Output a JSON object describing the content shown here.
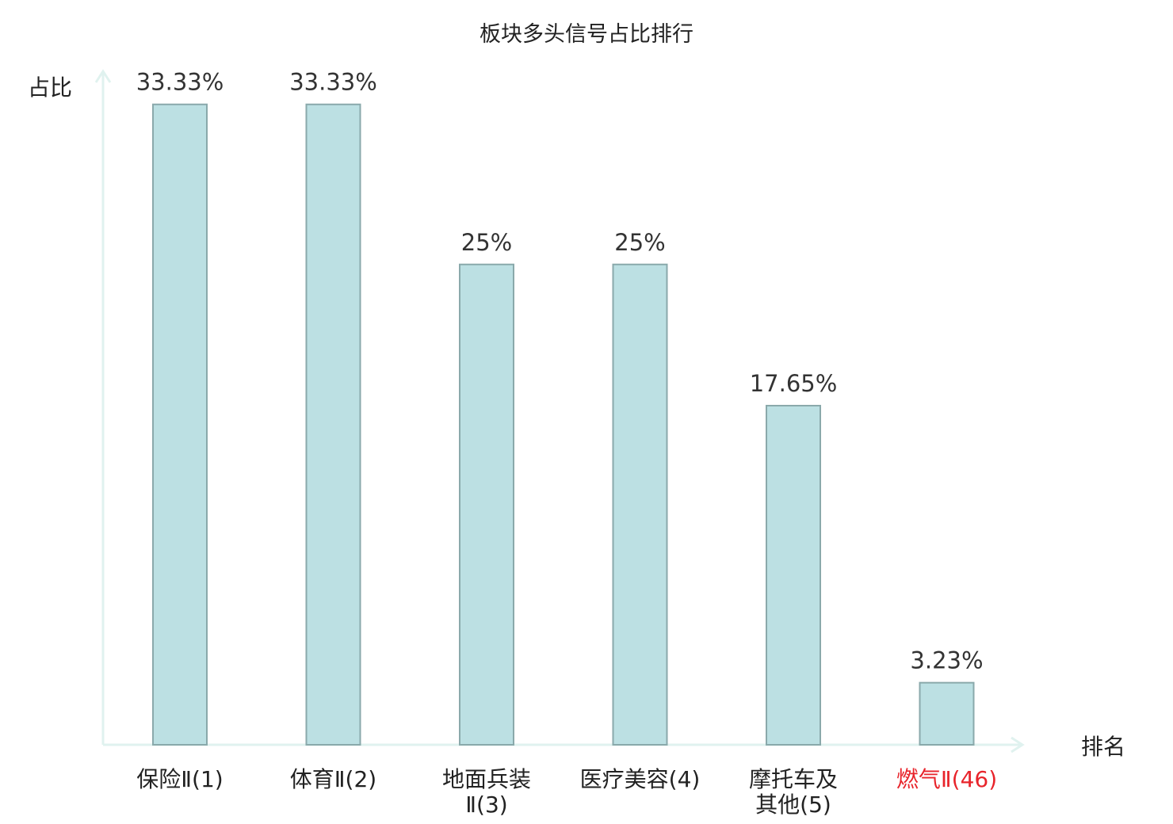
{
  "chart_data": {
    "type": "bar",
    "title": "板块多头信号占比排行",
    "ylabel": "占比",
    "xlabel": "排名",
    "ylim": [
      0,
      36
    ],
    "grid": false,
    "categories": [
      {
        "lines": [
          "保险Ⅱ(1)"
        ],
        "highlight": false
      },
      {
        "lines": [
          "体育Ⅱ(2)"
        ],
        "highlight": false
      },
      {
        "lines": [
          "地面兵装",
          "Ⅱ(3)"
        ],
        "highlight": false
      },
      {
        "lines": [
          "医疗美容(4)"
        ],
        "highlight": false
      },
      {
        "lines": [
          "摩托车及",
          "其他(5)"
        ],
        "highlight": false
      },
      {
        "lines": [
          "燃气Ⅱ(46)"
        ],
        "highlight": true
      }
    ],
    "values": [
      33.33,
      33.33,
      25,
      25,
      17.65,
      3.23
    ],
    "value_labels": [
      "33.33%",
      "33.33%",
      "25%",
      "25%",
      "17.65%",
      "3.23%"
    ],
    "colors": {
      "bar_fill": "#bce0e3",
      "bar_stroke": "#8aa9ab",
      "axis": "#e0f2ef",
      "highlight_text": "#e8242b"
    }
  }
}
